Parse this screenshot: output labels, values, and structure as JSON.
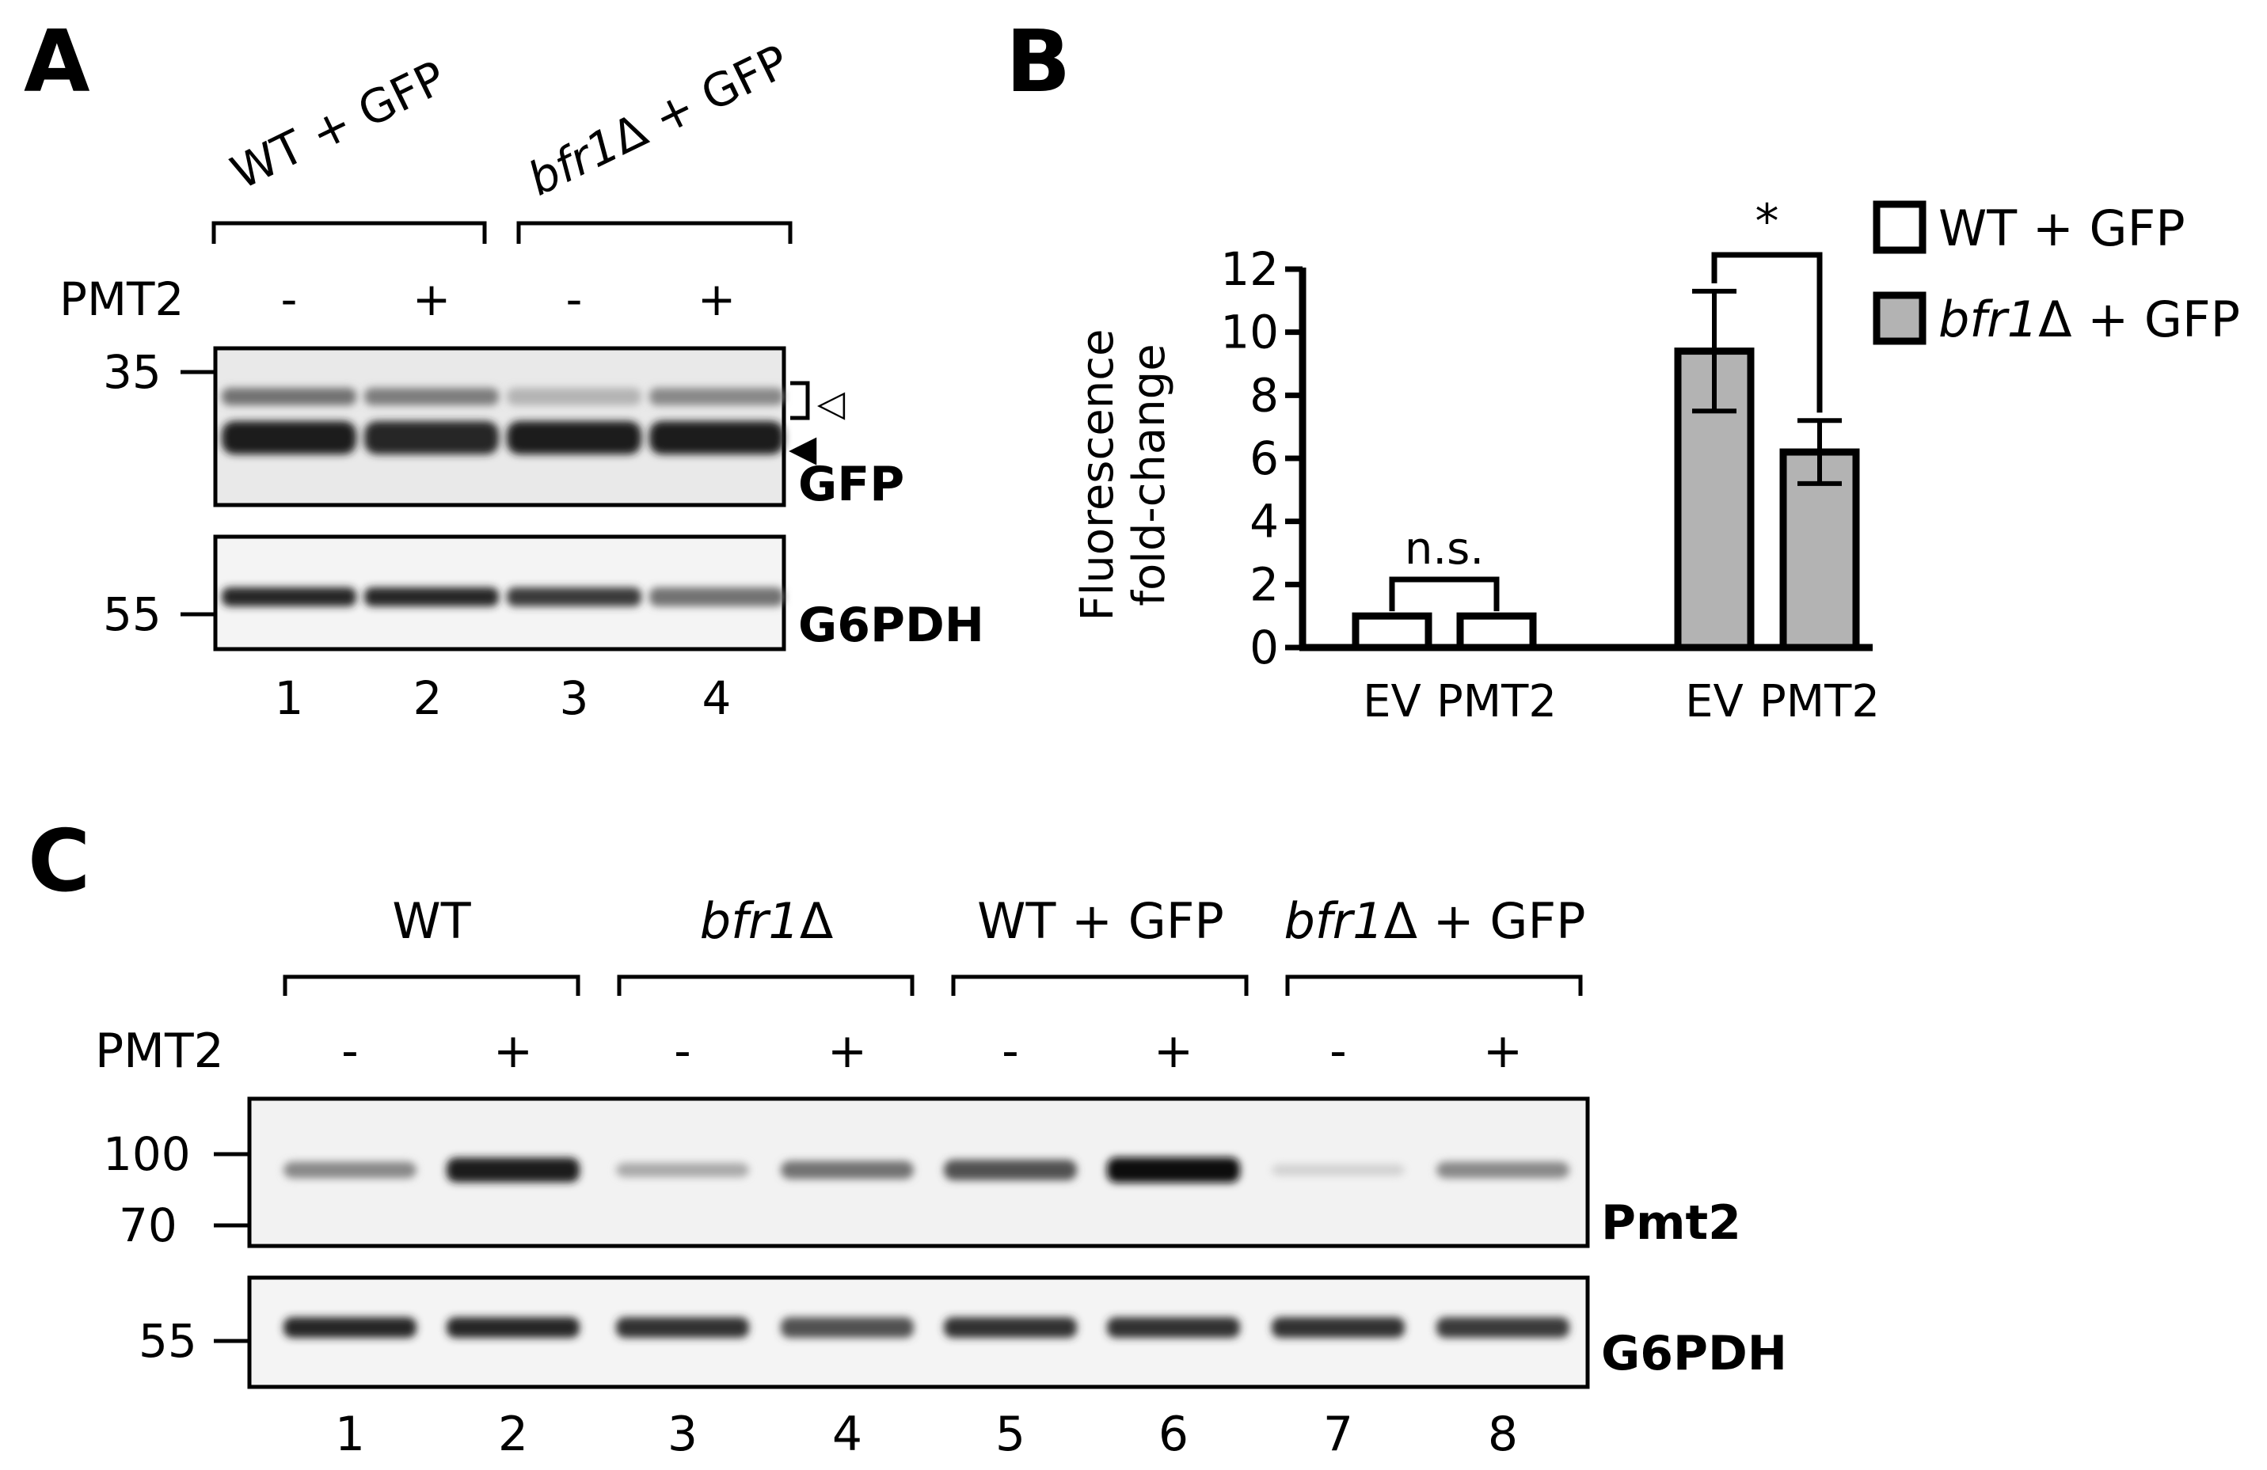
{
  "panel_a": {
    "letter": "A",
    "group_labels": [
      {
        "prefix": "",
        "italic": "",
        "suffix": "WT + GFP"
      },
      {
        "prefix": "",
        "italic": "bfr1",
        "suffix": "Δ + GFP"
      }
    ],
    "pmt2_label": "PMT2",
    "pmt2_signs": [
      "-",
      "+",
      "-",
      "+"
    ],
    "markers_top": [
      "35"
    ],
    "markers_bottom": [
      "55"
    ],
    "top_blot_label": "GFP",
    "bottom_blot_label": "G6PDH",
    "lane_numbers": [
      "1",
      "2",
      "3",
      "4"
    ],
    "arrow_open": "◁",
    "arrow_filled": "◀",
    "band_intensity": {
      "gfp_upper": [
        0.55,
        0.5,
        0.25,
        0.45
      ],
      "gfp_lower": [
        0.95,
        0.9,
        0.95,
        0.95
      ],
      "g6pdh": [
        0.9,
        0.9,
        0.8,
        0.55
      ]
    }
  },
  "panel_b": {
    "letter": "B",
    "chart_data": {
      "type": "bar",
      "ylabel_line1": "Fluorescence",
      "ylabel_line2": "fold-change",
      "ylim": [
        0,
        12
      ],
      "yticks": [
        0,
        2,
        4,
        6,
        8,
        10,
        12
      ],
      "categories": [
        "EV",
        "PMT2",
        "EV",
        "PMT2"
      ],
      "series": [
        {
          "name": "WT + GFP",
          "name_italic": "",
          "color": "#ffffff",
          "x": [
            "EV",
            "PMT2"
          ],
          "values": [
            1.0,
            1.0
          ],
          "errors": [
            0,
            0
          ]
        },
        {
          "name": "Δ + GFP",
          "name_italic": "bfr1",
          "color": "#b3b3b3",
          "x": [
            "EV",
            "PMT2"
          ],
          "values": [
            9.4,
            6.2
          ],
          "errors": [
            1.9,
            1.0
          ]
        }
      ],
      "annotations": [
        {
          "text": "n.s.",
          "between": [
            0,
            1
          ]
        },
        {
          "text": "*",
          "between": [
            2,
            3
          ]
        }
      ],
      "legend_position": "top-right"
    }
  },
  "panel_c": {
    "letter": "C",
    "group_labels": [
      {
        "italic": "",
        "suffix": "WT"
      },
      {
        "italic": "bfr1",
        "suffix": "Δ"
      },
      {
        "italic": "",
        "suffix": "WT + GFP"
      },
      {
        "italic": "bfr1",
        "suffix": "Δ + GFP"
      }
    ],
    "pmt2_label": "PMT2",
    "pmt2_signs": [
      "-",
      "+",
      "-",
      "+",
      "-",
      "+",
      "-",
      "+"
    ],
    "markers_top": [
      "100",
      "70"
    ],
    "markers_bottom": [
      "55"
    ],
    "top_blot_label": "Pmt2",
    "bottom_blot_label": "G6PDH",
    "lane_numbers": [
      "1",
      "2",
      "3",
      "4",
      "5",
      "6",
      "7",
      "8"
    ],
    "band_intensity": {
      "pmt2": [
        0.45,
        0.95,
        0.3,
        0.55,
        0.7,
        1.0,
        0.12,
        0.45
      ],
      "g6pdh": [
        0.9,
        0.9,
        0.85,
        0.7,
        0.85,
        0.85,
        0.85,
        0.8
      ]
    }
  }
}
